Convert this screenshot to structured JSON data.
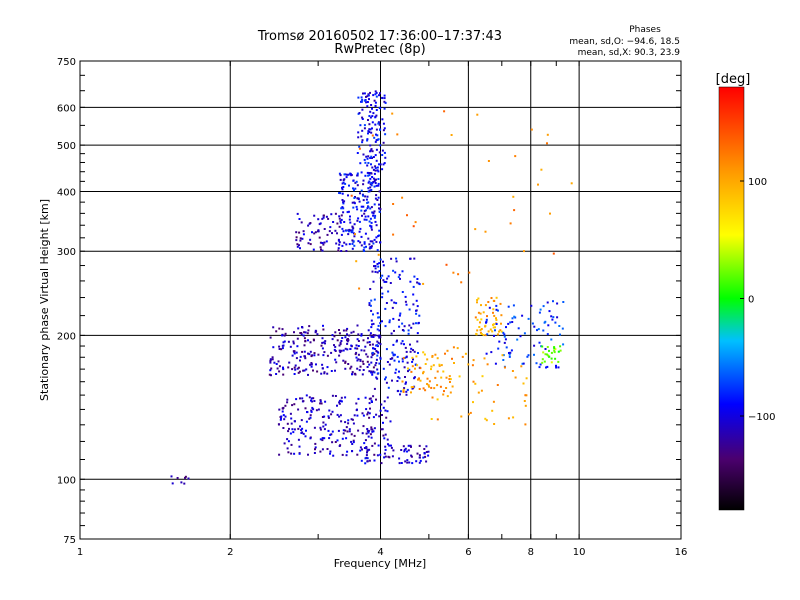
{
  "chart_data": {
    "type": "scatter",
    "title": "Tromsø 20160502 17:36:00–17:37:43",
    "subtitle": "RwPretec (8p)",
    "xlabel": "Frequency [MHz]",
    "ylabel": "Stationary phase Virtual Height [km]",
    "x_scale": "log",
    "y_scale": "log",
    "xlim": [
      1,
      16
    ],
    "ylim": [
      75,
      750
    ],
    "x_ticks": [
      1,
      2,
      4,
      6,
      8,
      10,
      16
    ],
    "x_tick_labels": [
      "1",
      "2",
      "4",
      "6",
      "8",
      "10",
      "16"
    ],
    "y_ticks": [
      75,
      100,
      200,
      300,
      400,
      500,
      600,
      750
    ],
    "y_tick_labels": [
      "75",
      "100",
      "200",
      "300",
      "400",
      "500",
      "600",
      "750"
    ],
    "grid": true,
    "stats": {
      "header": "Phases",
      "line_o": "mean, sd,O:  −94.6, 18.5",
      "line_x": "mean, sd,X:  90.3, 23.9"
    },
    "colorbar": {
      "label": "[deg]",
      "range": [
        -180,
        180
      ],
      "ticks": [
        100,
        0,
        -100
      ],
      "tick_labels": [
        "100",
        "0",
        "−100"
      ]
    },
    "series": [
      {
        "clusters": [
          {
            "f": [
              1.5,
              1.65
            ],
            "h": [
              97,
              102
            ],
            "phase": -120,
            "n": 8
          },
          {
            "f": [
              2.4,
              4.0
            ],
            "h": [
              165,
              210
            ],
            "phase": -115,
            "n": 260
          },
          {
            "f": [
              2.5,
              4.2
            ],
            "h": [
              112,
              150
            ],
            "phase": -110,
            "n": 240
          },
          {
            "f": [
              3.6,
              5.0
            ],
            "h": [
              108,
              118
            ],
            "phase": -105,
            "n": 70
          },
          {
            "f": [
              2.7,
              3.4
            ],
            "h": [
              300,
              360
            ],
            "phase": -115,
            "n": 70
          },
          {
            "f": [
              3.3,
              4.0
            ],
            "h": [
              300,
              440
            ],
            "phase": -95,
            "n": 220
          },
          {
            "f": [
              3.6,
              4.1
            ],
            "h": [
              440,
              650
            ],
            "phase": -95,
            "n": 140
          },
          {
            "f": [
              3.8,
              4.8
            ],
            "h": [
              150,
              290
            ],
            "phase": -95,
            "n": 200
          },
          {
            "f": [
              4.4,
              5.6
            ],
            "h": [
              150,
              185
            ],
            "phase": 105,
            "n": 60
          },
          {
            "f": [
              6.2,
              7.0
            ],
            "h": [
              200,
              240
            ],
            "phase": 100,
            "n": 50
          },
          {
            "f": [
              6.5,
              9.3
            ],
            "h": [
              170,
              240
            ],
            "phase": -80,
            "n": 90
          },
          {
            "f": [
              8.4,
              9.2
            ],
            "h": [
              175,
              190
            ],
            "phase": 25,
            "n": 25
          },
          {
            "f": [
              3.5,
              10.0
            ],
            "h": [
              250,
              620
            ],
            "phase": 120,
            "n": 40
          },
          {
            "f": [
              5.0,
              8.0
            ],
            "h": [
              130,
              190
            ],
            "phase": 100,
            "n": 50
          }
        ]
      }
    ]
  }
}
